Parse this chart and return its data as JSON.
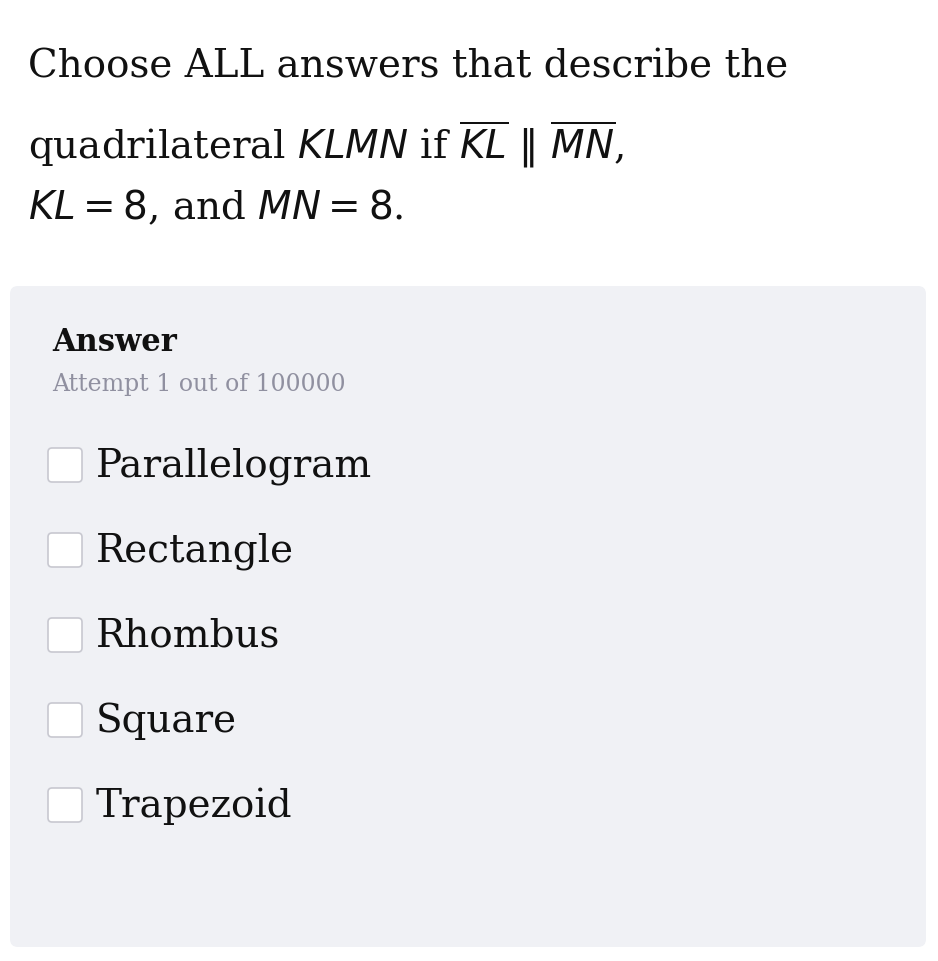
{
  "title_line1": "Choose ALL answers that describe the",
  "answer_label": "Answer",
  "attempt_text": "Attempt 1 out of 100000",
  "options": [
    "Parallelogram",
    "Rectangle",
    "Rhombus",
    "Square",
    "Trapezoid"
  ],
  "bg_color": "#ffffff",
  "answer_box_color": "#f0f1f5",
  "title_fontsize": 28,
  "option_fontsize": 28,
  "answer_fontsize": 22,
  "attempt_fontsize": 17,
  "checkbox_color": "#c8c8d0",
  "text_color": "#111111",
  "attempt_color": "#9090a0"
}
